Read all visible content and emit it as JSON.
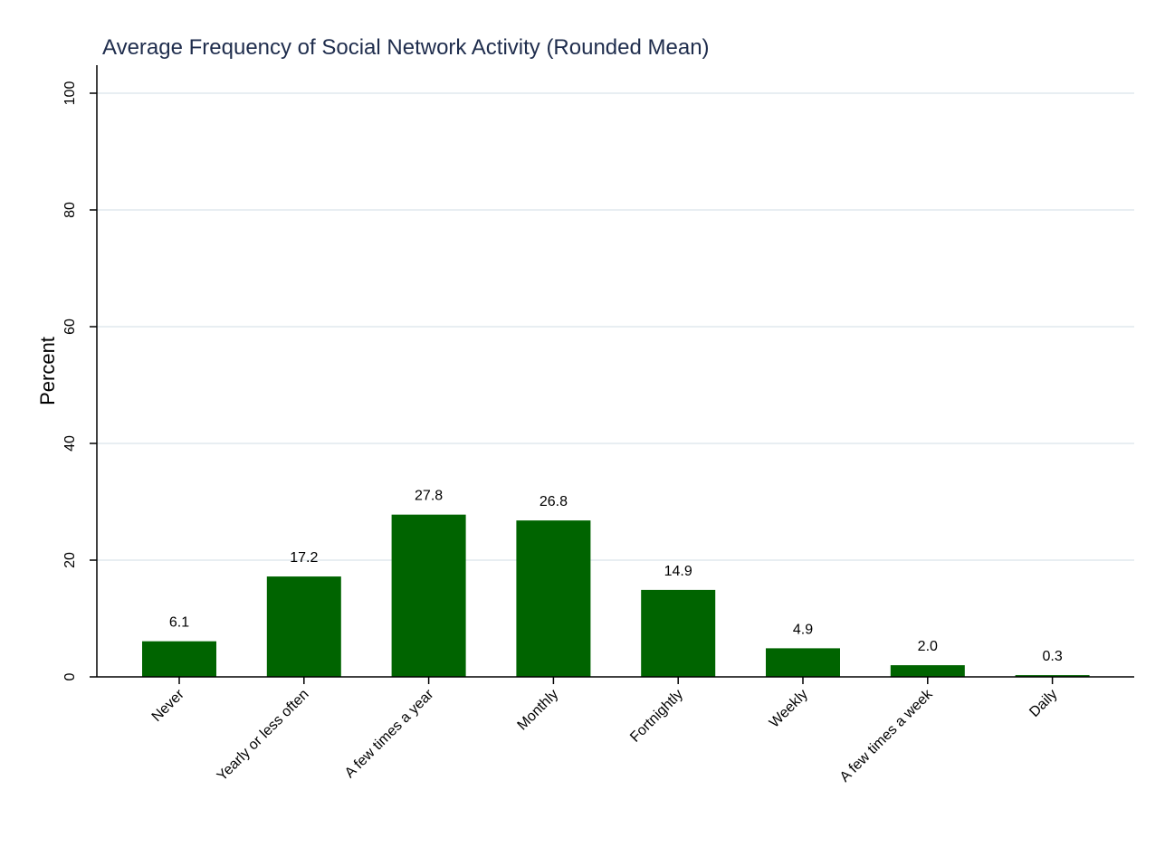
{
  "chart_data": {
    "type": "bar",
    "title": "Average Frequency of Social Network Activity (Rounded Mean)",
    "ylabel": "Percent",
    "xlabel": "",
    "ylim": [
      0,
      105
    ],
    "yticks": [
      0,
      20,
      40,
      60,
      80,
      100
    ],
    "grid": true,
    "categories": [
      "Never",
      "Yearly or less often",
      "A few times a year",
      "Monthly",
      "Fortnightly",
      "Weekly",
      "A few times a week",
      "Daily"
    ],
    "values": [
      6.1,
      17.2,
      27.8,
      26.8,
      14.9,
      4.9,
      2.0,
      0.3
    ],
    "data_labels": [
      "6.1",
      "17.2",
      "27.8",
      "26.8",
      "14.9",
      "4.9",
      "2.0",
      "0.3"
    ],
    "bar_color": "#006400"
  }
}
